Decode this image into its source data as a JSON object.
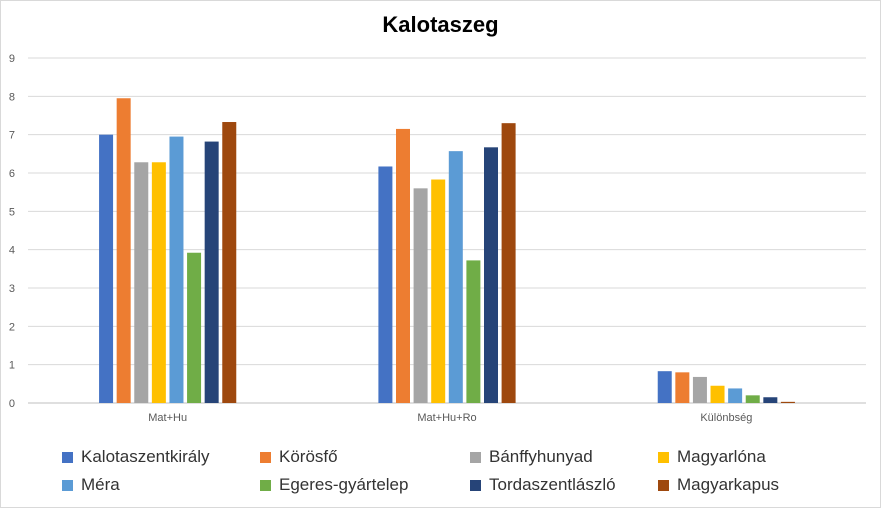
{
  "chart_data": {
    "type": "bar",
    "title": "Kalotaszeg",
    "categories": [
      "Mat+Hu",
      "Mat+Hu+Ro",
      "Különbség"
    ],
    "ylim": [
      0,
      9
    ],
    "yticks": [
      0,
      1,
      2,
      3,
      4,
      5,
      6,
      7,
      8,
      9
    ],
    "grid": true,
    "legend_position": "bottom",
    "series": [
      {
        "name": "Kalotaszentkirály",
        "color": "#4472C4",
        "values": [
          7.0,
          6.17,
          0.83
        ]
      },
      {
        "name": "Körösfő",
        "color": "#ED7D31",
        "values": [
          7.95,
          7.15,
          0.8
        ]
      },
      {
        "name": "Bánffyhunyad",
        "color": "#A5A5A5",
        "values": [
          6.28,
          5.6,
          0.68
        ]
      },
      {
        "name": "Magyarlóna",
        "color": "#FFC000",
        "values": [
          6.28,
          5.83,
          0.45
        ]
      },
      {
        "name": "Méra",
        "color": "#5B9BD5",
        "values": [
          6.95,
          6.57,
          0.38
        ]
      },
      {
        "name": "Egeres-gyártelep",
        "color": "#70AD47",
        "values": [
          3.92,
          3.72,
          0.2
        ]
      },
      {
        "name": "Tordaszentlászló",
        "color": "#264478",
        "values": [
          6.82,
          6.67,
          0.15
        ]
      },
      {
        "name": "Magyarkapus",
        "color": "#9E480E",
        "values": [
          7.33,
          7.3,
          0.03
        ]
      }
    ]
  }
}
